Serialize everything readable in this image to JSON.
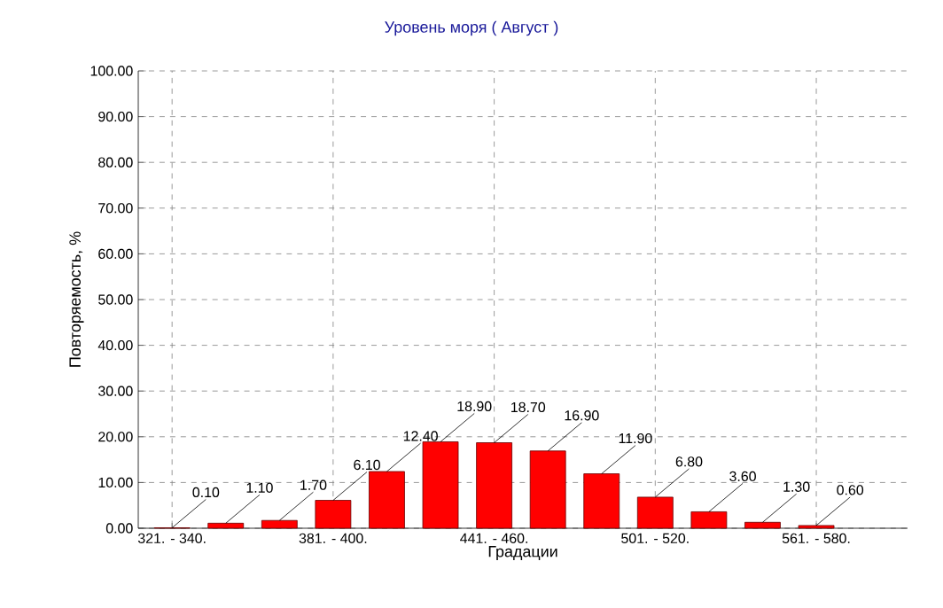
{
  "chart_data": {
    "type": "bar",
    "title": "Уровень моря    ( Август )",
    "xlabel": "Градации",
    "ylabel": "Повторяемость, %",
    "categories": [
      "321. - 340.",
      null,
      null,
      "381. - 400.",
      null,
      null,
      "441. - 460.",
      null,
      null,
      "501. - 520.",
      null,
      null,
      "561. - 580."
    ],
    "values": [
      0.1,
      1.1,
      1.7,
      6.1,
      12.4,
      18.9,
      18.7,
      16.9,
      11.9,
      6.8,
      3.6,
      1.3,
      0.6
    ],
    "value_labels": [
      "0.10",
      "1.10",
      "1.70",
      "6.10",
      "12.40",
      "18.90",
      "18.70",
      "16.90",
      "11.90",
      "6.80",
      "3.60",
      "1.30",
      "0.60"
    ],
    "color": "#ff0000",
    "ylim": [
      0,
      100
    ],
    "yticks": [
      {
        "value": 0,
        "label": "0.00"
      },
      {
        "value": 10,
        "label": "10.00"
      },
      {
        "value": 20,
        "label": "20.00"
      },
      {
        "value": 30,
        "label": "30.00"
      },
      {
        "value": 40,
        "label": "40.00"
      },
      {
        "value": 50,
        "label": "50.00"
      },
      {
        "value": 60,
        "label": "60.00"
      },
      {
        "value": 70,
        "label": "70.00"
      },
      {
        "value": 80,
        "label": "80.00"
      },
      {
        "value": 90,
        "label": "90.00"
      },
      {
        "value": 100,
        "label": "100.00"
      }
    ],
    "grid": true
  }
}
